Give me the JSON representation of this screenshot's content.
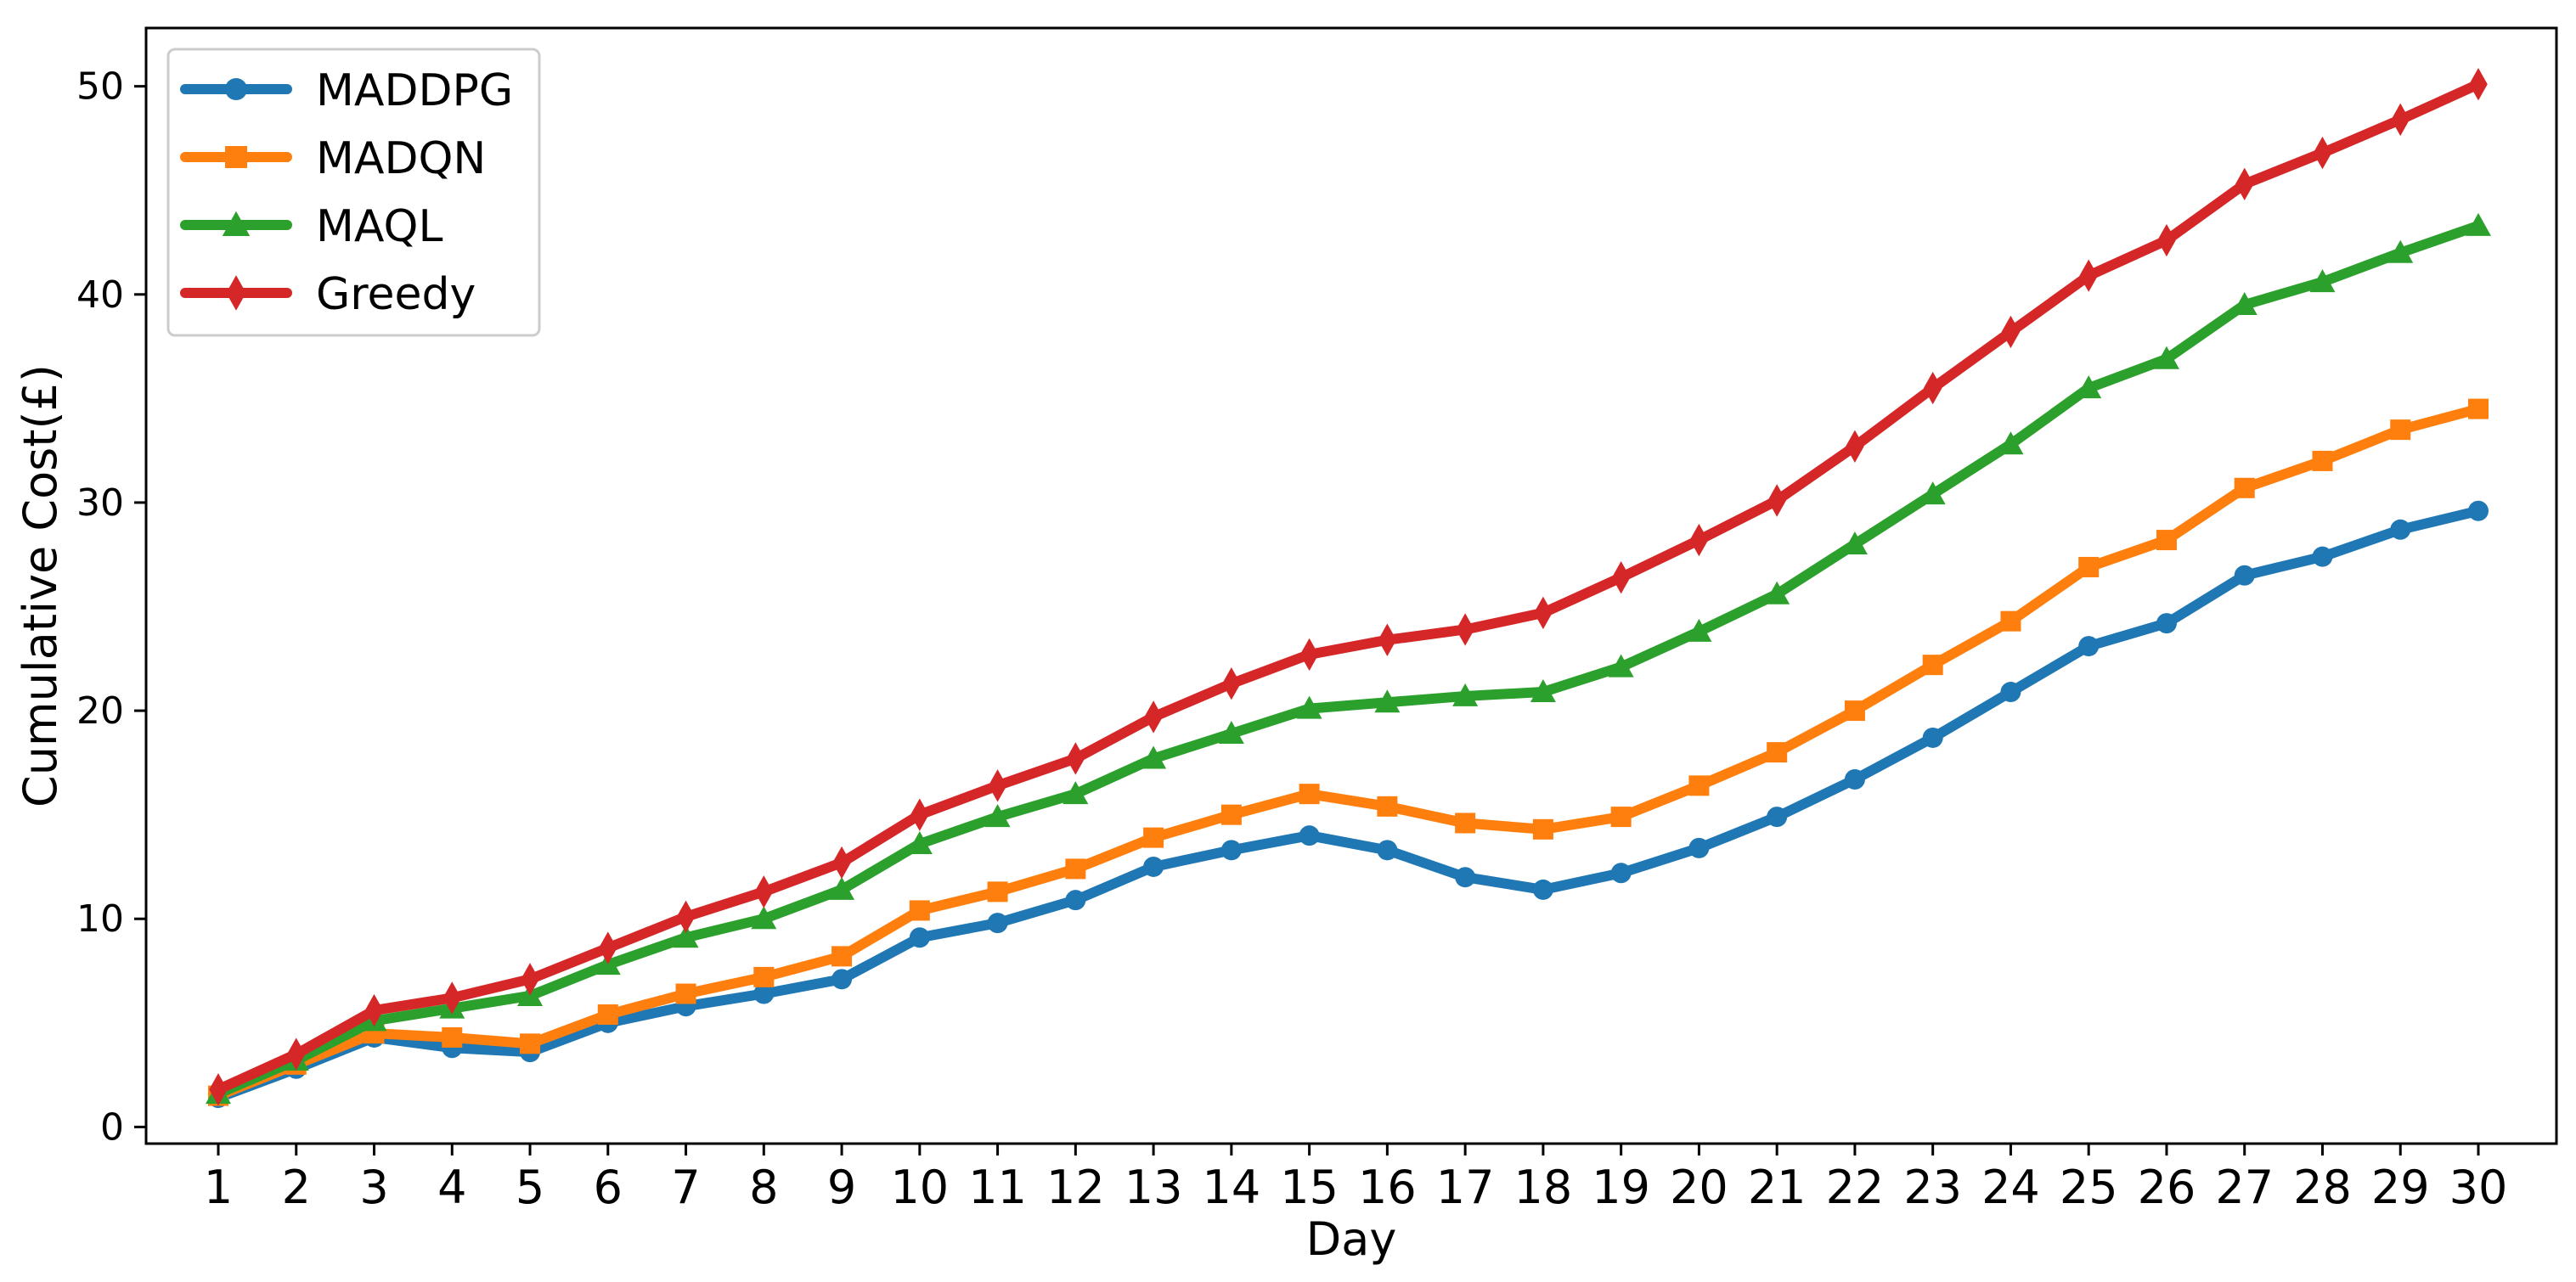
{
  "chart_data": {
    "type": "line",
    "title": "",
    "xlabel": "Day",
    "ylabel": "Cumulative Cost(£)",
    "categories": [
      "1",
      "2",
      "3",
      "4",
      "5",
      "6",
      "7",
      "8",
      "9",
      "10",
      "11",
      "12",
      "13",
      "14",
      "15",
      "16",
      "17",
      "18",
      "19",
      "20",
      "21",
      "22",
      "23",
      "24",
      "25",
      "26",
      "27",
      "28",
      "29",
      "30"
    ],
    "ylim": [
      -0.8,
      52.8
    ],
    "yticks": [
      "0",
      "10",
      "20",
      "30",
      "40",
      "50"
    ],
    "grid": false,
    "legend_position": "upper-left",
    "series": [
      {
        "name": "MADDPG",
        "color": "#1f77b4",
        "marker": "circle",
        "values": [
          1.4,
          2.8,
          4.3,
          3.8,
          3.6,
          5.0,
          5.8,
          6.4,
          7.1,
          9.1,
          9.8,
          10.9,
          12.5,
          13.3,
          14.0,
          13.3,
          12.0,
          11.4,
          12.2,
          13.4,
          14.9,
          16.7,
          18.7,
          20.9,
          23.1,
          24.2,
          26.5,
          27.4,
          28.7,
          29.6
        ]
      },
      {
        "name": "MADQN",
        "color": "#ff7f0e",
        "marker": "square",
        "values": [
          1.5,
          3.0,
          4.5,
          4.3,
          4.0,
          5.4,
          6.4,
          7.2,
          8.2,
          10.4,
          11.3,
          12.4,
          13.9,
          15.0,
          16.0,
          15.4,
          14.6,
          14.3,
          14.9,
          16.4,
          18.0,
          20.0,
          22.2,
          24.3,
          26.9,
          28.2,
          30.7,
          32.0,
          33.5,
          34.5
        ]
      },
      {
        "name": "MAQL",
        "color": "#2ca02c",
        "marker": "triangle",
        "values": [
          1.6,
          3.2,
          5.1,
          5.7,
          6.3,
          7.8,
          9.1,
          10.0,
          11.4,
          13.6,
          14.9,
          16.0,
          17.7,
          18.9,
          20.1,
          20.4,
          20.7,
          20.9,
          22.1,
          23.8,
          25.6,
          28.0,
          30.4,
          32.8,
          35.5,
          36.9,
          39.5,
          40.6,
          42.0,
          43.3
        ]
      },
      {
        "name": "Greedy",
        "color": "#d62728",
        "marker": "diamond",
        "values": [
          1.8,
          3.5,
          5.6,
          6.2,
          7.1,
          8.6,
          10.1,
          11.3,
          12.7,
          15.0,
          16.4,
          17.7,
          19.7,
          21.3,
          22.7,
          23.4,
          23.9,
          24.7,
          26.4,
          28.2,
          30.1,
          32.7,
          35.5,
          38.2,
          40.9,
          42.6,
          45.3,
          46.8,
          48.4,
          50.1
        ]
      }
    ]
  }
}
